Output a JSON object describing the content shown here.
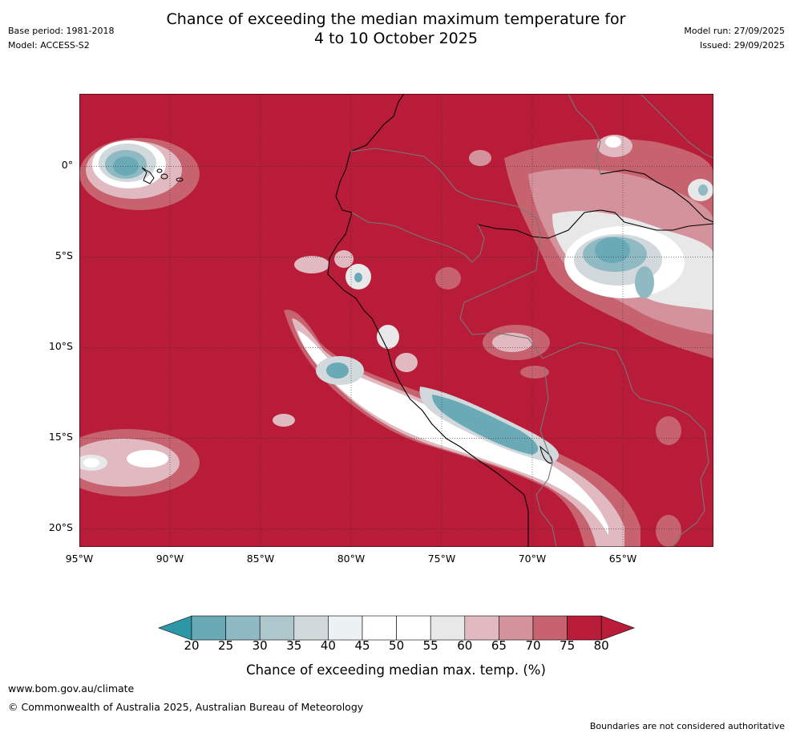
{
  "header": {
    "title_line1": "Chance of exceeding the median maximum temperature for",
    "title_line2": "4 to 10 October 2025",
    "base_period": "Base period: 1981-2018",
    "model": "Model: ACCESS-S2",
    "model_run": "Model run: 27/09/2025",
    "issued": "Issued: 29/09/2025"
  },
  "map": {
    "lat_labels": [
      "0°",
      "5°S",
      "10°S",
      "15°S",
      "20°S"
    ],
    "lat_values": [
      0,
      -5,
      -10,
      -15,
      -20
    ],
    "lon_labels": [
      "95°W",
      "90°W",
      "85°W",
      "80°W",
      "75°W",
      "70°W",
      "65°W"
    ],
    "lon_values": [
      -95,
      -90,
      -85,
      -80,
      -75,
      -70,
      -65
    ],
    "extent": {
      "lon_min": -95,
      "lon_max": -60,
      "lat_min": -21,
      "lat_max": 4
    },
    "colors": {
      "c20": "#2e97a7",
      "c25": "#6aaab7",
      "c30": "#8fbac3",
      "c35": "#adc7cc",
      "c40": "#d1d9dc",
      "c45": "#ecf1f3",
      "c50": "#ffffff",
      "c55": "#ffffff",
      "c60": "#e9e8e9",
      "c65": "#e0bac0",
      "c70": "#d4929c",
      "c75": "#c6636f",
      "c80": "#b91c38"
    }
  },
  "colorbar": {
    "ticks": [
      "20",
      "25",
      "30",
      "35",
      "40",
      "45",
      "50",
      "55",
      "60",
      "65",
      "70",
      "75",
      "80"
    ],
    "title": "Chance of exceeding median max. temp. (%)"
  },
  "footer": {
    "url": "www.bom.gov.au/climate",
    "copyright": "© Commonwealth of Australia 2025, Australian Bureau of Meteorology",
    "disclaimer": "Boundaries are not considered authoritative"
  }
}
